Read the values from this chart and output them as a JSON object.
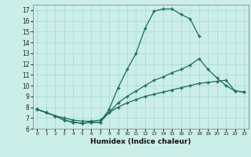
{
  "xlabel": "Humidex (Indice chaleur)",
  "xlim": [
    -0.5,
    23.5
  ],
  "ylim": [
    6.0,
    17.5
  ],
  "xticks": [
    0,
    1,
    2,
    3,
    4,
    5,
    6,
    7,
    8,
    9,
    10,
    11,
    12,
    13,
    14,
    15,
    16,
    17,
    18,
    19,
    20,
    21,
    22,
    23
  ],
  "yticks": [
    6,
    7,
    8,
    9,
    10,
    11,
    12,
    13,
    14,
    15,
    16,
    17
  ],
  "bg_color": "#cceee8",
  "grid_color": "#aaddda",
  "line_color": "#1a6b5e",
  "curve1_x": [
    0,
    1,
    2,
    3,
    4,
    5,
    6,
    7,
    8,
    9,
    10,
    11,
    12,
    13,
    14,
    15,
    16,
    17,
    18
  ],
  "curve1_y": [
    7.8,
    7.5,
    7.2,
    6.8,
    6.6,
    6.5,
    6.6,
    6.6,
    7.8,
    9.8,
    11.5,
    13.0,
    15.3,
    16.9,
    17.1,
    17.1,
    16.6,
    16.2,
    14.6
  ],
  "curve2_x": [
    0,
    1,
    2,
    3,
    4,
    5,
    6,
    7,
    8,
    9,
    10,
    11,
    12,
    13,
    14,
    15,
    16,
    17,
    18,
    19,
    20,
    21,
    22,
    23
  ],
  "curve2_y": [
    7.8,
    7.5,
    7.2,
    7.0,
    6.8,
    6.7,
    6.7,
    6.8,
    7.5,
    8.4,
    9.0,
    9.5,
    10.0,
    10.5,
    10.8,
    11.2,
    11.5,
    11.9,
    12.5,
    11.5,
    10.7,
    10.0,
    9.5,
    9.4
  ],
  "curve3_x": [
    0,
    1,
    2,
    3,
    4,
    5,
    6,
    7,
    8,
    9,
    10,
    11,
    12,
    13,
    14,
    15,
    16,
    17,
    18,
    19,
    20,
    21,
    22,
    23
  ],
  "curve3_y": [
    7.8,
    7.5,
    7.2,
    6.8,
    6.6,
    6.5,
    6.6,
    6.6,
    7.5,
    8.0,
    8.4,
    8.7,
    9.0,
    9.2,
    9.4,
    9.6,
    9.8,
    10.0,
    10.2,
    10.3,
    10.4,
    10.5,
    9.5,
    9.4
  ]
}
